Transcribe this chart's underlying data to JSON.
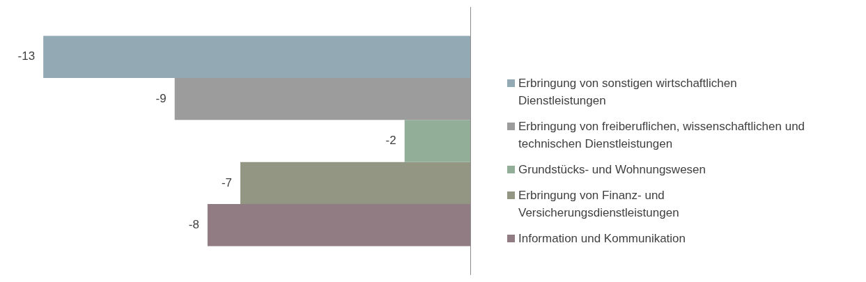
{
  "chart_data": {
    "type": "bar",
    "orientation": "horizontal",
    "categories": [
      null
    ],
    "grid": false,
    "legend": "right",
    "data_labels": true,
    "series": [
      {
        "name": "Erbringung von sonstigen wirtschaftlichen Dienstleistungen",
        "color": "#93aab4",
        "values": [
          -13
        ]
      },
      {
        "name": "Erbringung von freiberuflichen, wissenschaftlichen und technischen Dienstleistungen",
        "color": "#9c9c9c",
        "values": [
          -9
        ]
      },
      {
        "name": "Grundstücks- und Wohnungswesen",
        "color": "#93ae98",
        "values": [
          -2
        ]
      },
      {
        "name": "Erbringung von Finanz- und Versicherungsdienstleistungen",
        "color": "#939682",
        "values": [
          -7
        ]
      },
      {
        "name": "Information und Kommunikation",
        "color": "#927c84",
        "values": [
          -8
        ]
      }
    ]
  }
}
